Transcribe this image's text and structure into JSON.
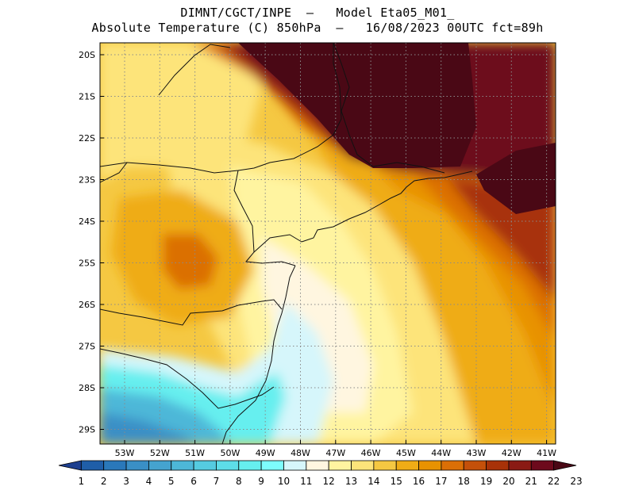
{
  "title_line1": "DIMNT/CGCT/INPE  –   Model Eta05_M01_",
  "title_line2": "Absolute Temperature (C) 850hPa  –   16/08/2023 00UTC fct=89h",
  "lat_labels": [
    "20S",
    "21S",
    "22S",
    "23S",
    "24S",
    "25S",
    "26S",
    "27S",
    "28S",
    "29S"
  ],
  "lon_labels": [
    "53W",
    "52W",
    "51W",
    "50W",
    "49W",
    "48W",
    "47W",
    "46W",
    "45W",
    "44W",
    "43W",
    "42W",
    "41W"
  ],
  "colorbar": {
    "labels": [
      "1",
      "2",
      "3",
      "4",
      "5",
      "6",
      "7",
      "8",
      "9",
      "10",
      "11",
      "12",
      "13",
      "14",
      "15",
      "16",
      "17",
      "18",
      "19",
      "20",
      "21",
      "22",
      "23"
    ],
    "colors": [
      "#1d3f8f",
      "#1f5ea8",
      "#2a78ba",
      "#3a8fc6",
      "#45a3cf",
      "#4db7d8",
      "#55cbe0",
      "#5ddde8",
      "#66efef",
      "#7dfdfd",
      "#d6f6fb",
      "#fff6e0",
      "#fff4a0",
      "#fde47a",
      "#f5c842",
      "#efac16",
      "#e89200",
      "#db6f06",
      "#c4500a",
      "#a83208",
      "#8a1a14",
      "#6d0a1c",
      "#4a0815"
    ]
  },
  "field_colors": {
    "cold_sea": "#5ddde8",
    "cool": "#d6f6fb",
    "pale": "#fff6e0",
    "light_yellow": "#fff4a0",
    "yellow": "#fde47a",
    "gold": "#f5c842",
    "orange": "#efac16",
    "dark_orange": "#e89200",
    "warm": "#db6f06",
    "hot": "#a83208",
    "very_hot": "#6d0a1c",
    "max": "#4a0815"
  }
}
